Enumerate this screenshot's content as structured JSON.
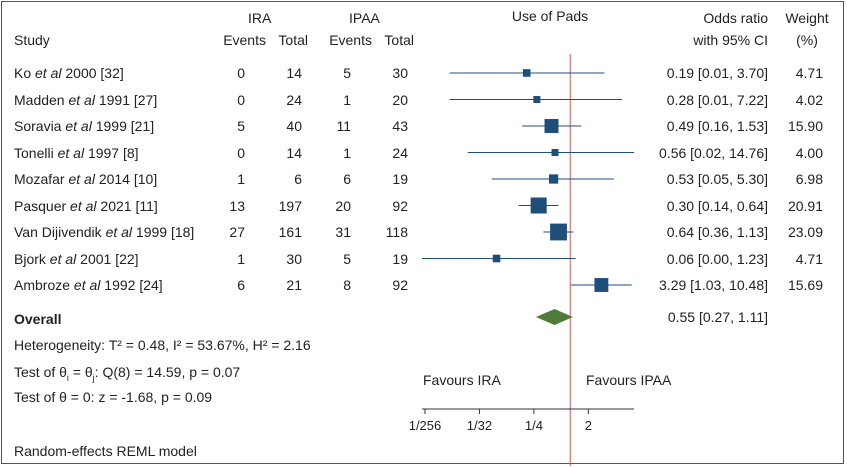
{
  "headers": {
    "study": "Study",
    "ira": "IRA",
    "ipaa": "IPAA",
    "events": "Events",
    "total": "Total",
    "plot_title": "Use of Pads",
    "or_line1": "Odds ratio",
    "or_line2": "with 95% CI",
    "weight_line1": "Weight",
    "weight_line2": "(%)"
  },
  "chart_data": {
    "type": "forest",
    "title": "Use of Pads",
    "x_scale": "log2",
    "x_ticks": [
      {
        "value": 0.00390625,
        "label": "1/256"
      },
      {
        "value": 0.03125,
        "label": "1/32"
      },
      {
        "value": 0.25,
        "label": "1/4"
      },
      {
        "value": 2,
        "label": "2"
      }
    ],
    "reference_line": 1,
    "favours_left": "Favours IRA",
    "favours_right": "Favours IPAA",
    "studies": [
      {
        "author": "Ko",
        "etal": "et al",
        "rest": " 2000 [32]",
        "ira_events": "0",
        "ira_total": "14",
        "ipaa_events": "5",
        "ipaa_total": "30",
        "or": 0.19,
        "lo": 0.01,
        "hi": 3.7,
        "ci_text": "0.19 [0.01, 3.70]",
        "weight": 4.71,
        "weight_text": "4.71"
      },
      {
        "author": "Madden",
        "etal": "et al",
        "rest": " 1991 [27]",
        "ira_events": "0",
        "ira_total": "24",
        "ipaa_events": "1",
        "ipaa_total": "20",
        "or": 0.28,
        "lo": 0.01,
        "hi": 7.22,
        "ci_text": "0.28 [0.01, 7.22]",
        "weight": 4.02,
        "weight_text": "4.02"
      },
      {
        "author": "Soravia",
        "etal": "et al",
        "rest": " 1999 [21]",
        "ira_events": "5",
        "ira_total": "40",
        "ipaa_events": "11",
        "ipaa_total": "43",
        "or": 0.49,
        "lo": 0.16,
        "hi": 1.53,
        "ci_text": "0.49 [0.16, 1.53]",
        "weight": 15.9,
        "weight_text": "15.90"
      },
      {
        "author": "Tonelli",
        "etal": "et al",
        "rest": " 1997 [8]",
        "ira_events": "0",
        "ira_total": "14",
        "ipaa_events": "1",
        "ipaa_total": "24",
        "or": 0.56,
        "lo": 0.02,
        "hi": 14.76,
        "ci_text": "0.56 [0.02, 14.76]",
        "weight": 4.0,
        "weight_text": "4.00"
      },
      {
        "author": "Mozafar",
        "etal": "et al",
        "rest": " 2014 [10]",
        "ira_events": "1",
        "ira_total": "6",
        "ipaa_events": "6",
        "ipaa_total": "19",
        "or": 0.53,
        "lo": 0.05,
        "hi": 5.3,
        "ci_text": "0.53 [0.05, 5.30]",
        "weight": 6.98,
        "weight_text": "6.98"
      },
      {
        "author": "Pasquer",
        "etal": "et al",
        "rest": " 2021 [11]",
        "ira_events": "13",
        "ira_total": "197",
        "ipaa_events": "20",
        "ipaa_total": "92",
        "or": 0.3,
        "lo": 0.14,
        "hi": 0.64,
        "ci_text": "0.30 [0.14, 0.64]",
        "weight": 20.91,
        "weight_text": "20.91"
      },
      {
        "author": "Van Dijivendik",
        "etal": "et al",
        "rest": " 1999 [18]",
        "ira_events": "27",
        "ira_total": "161",
        "ipaa_events": "31",
        "ipaa_total": "118",
        "or": 0.64,
        "lo": 0.36,
        "hi": 1.13,
        "ci_text": "0.64 [0.36, 1.13]",
        "weight": 23.09,
        "weight_text": "23.09"
      },
      {
        "author": "Bjork",
        "etal": "et al",
        "rest": " 2001 [22]",
        "ira_events": "1",
        "ira_total": "30",
        "ipaa_events": "5",
        "ipaa_total": "19",
        "or": 0.06,
        "lo": 0.0,
        "hi": 1.23,
        "ci_text": "0.06 [0.00, 1.23]",
        "weight": 4.71,
        "weight_text": "4.71"
      },
      {
        "author": "Ambroze",
        "etal": "et al",
        "rest": " 1992 [24]",
        "ira_events": "6",
        "ira_total": "21",
        "ipaa_events": "8",
        "ipaa_total": "92",
        "or": 3.29,
        "lo": 1.03,
        "hi": 10.48,
        "ci_text": "3.29 [1.03, 10.48]",
        "weight": 15.69,
        "weight_text": "15.69"
      }
    ],
    "overall": {
      "label": "Overall",
      "or": 0.55,
      "lo": 0.27,
      "hi": 1.11,
      "ci_text": "0.55 [0.27, 1.11]"
    }
  },
  "stats": {
    "heterogeneity": "Heterogeneity: T² = 0.48, I² = 53.67%, H² = 2.16",
    "test_theta_a": "Test of θ",
    "sub_i": "i",
    "test_theta_b": " = θ",
    "sub_j": "j",
    "test_theta_c": ": Q(8) = 14.59, p = 0.07",
    "test_zero": "Test of θ = 0: z = -1.68, p = 0.09",
    "model": "Random-effects REML model"
  },
  "colors": {
    "marker": "#1f4e79",
    "diamond": "#4e7a3a",
    "reference": "#d9534f",
    "text": "#222222"
  }
}
